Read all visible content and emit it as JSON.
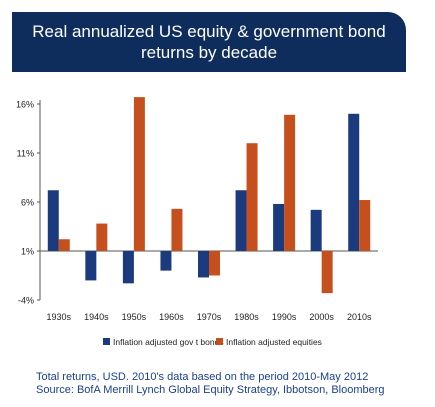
{
  "title": {
    "line1": "Real annualized US equity & government bond",
    "line2": "returns by decade"
  },
  "footnote": {
    "line1": "Total returns, USD. 2010's data based on the period 2010-May 2012",
    "line2": "Source: BofA Merrill Lynch Global Equity Strategy, Ibbotson, Bloomberg"
  },
  "colors": {
    "banner": "#0e2d5c",
    "bonds": "#1c3a7e",
    "equities": "#c5501e",
    "footnote": "#1c3f8e"
  },
  "chart_data": {
    "type": "bar",
    "title": "Real annualized US equity & government bond returns by decade",
    "categories": [
      "1930s",
      "1940s",
      "1950s",
      "1960s",
      "1970s",
      "1980s",
      "1990s",
      "2000s",
      "2010s"
    ],
    "series": [
      {
        "name": "Inflation adjusted gov't bonds",
        "values": [
          7.2,
          -2.0,
          -2.3,
          -1.0,
          -1.7,
          7.2,
          5.8,
          5.2,
          15.0
        ]
      },
      {
        "name": "Inflation adjusted equities",
        "values": [
          2.2,
          3.8,
          16.7,
          5.3,
          -1.5,
          12.0,
          14.9,
          -3.3,
          6.2
        ]
      }
    ],
    "legend_labels": [
      "Inflation adjusted gov t bonds",
      "Inflation adjusted equities"
    ],
    "yticks": [
      "16%",
      "11%",
      "6%",
      "1%",
      "-4%"
    ],
    "ytick_values": [
      16,
      11,
      6,
      1,
      -4
    ],
    "ylim": [
      -4,
      16
    ],
    "baseline": 1,
    "xlabel": "",
    "ylabel": "",
    "grid": false,
    "legend_position": "bottom"
  }
}
